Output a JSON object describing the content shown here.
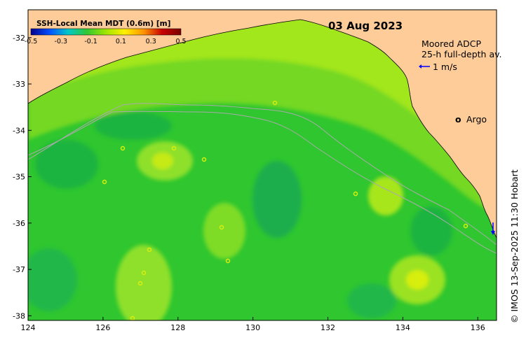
{
  "map": {
    "date_title": "03 Aug 2023",
    "credit": "© IMOS 13-Sep-2025 11:30 Hobart",
    "lon_ticks": [
      "124",
      "126",
      "128",
      "130",
      "132",
      "134",
      "136"
    ],
    "lat_ticks": [
      "-32",
      "-33",
      "-34",
      "-35",
      "-36",
      "-37",
      "-38"
    ],
    "lon_range": [
      124,
      136.5
    ],
    "lat_range": [
      -31.4,
      -38.1
    ]
  },
  "colorbar": {
    "title": "SSH-Local Mean MDT (0.6m) [m]",
    "ticks": [
      "-0.5",
      "-0.3",
      "-0.1",
      "0.1",
      "0.3",
      "0.5"
    ],
    "range": [
      -0.5,
      0.5
    ],
    "colors": [
      "#00008c",
      "#0050ff",
      "#00c8c8",
      "#32c832",
      "#a0e600",
      "#fff000",
      "#ff9600",
      "#c80000",
      "#780000"
    ]
  },
  "legend": {
    "adcp_line1": "Moored ADCP",
    "adcp_line2": "25-h full-depth av.",
    "adcp_scale": "1 m/s",
    "argo_symbol": "o",
    "argo_label": "Argo",
    "argo_color": "#ff00ff",
    "arrow_color": "#0000ff"
  },
  "colors": {
    "land": "#fdcc99",
    "field_base": "#2fc62f"
  }
}
